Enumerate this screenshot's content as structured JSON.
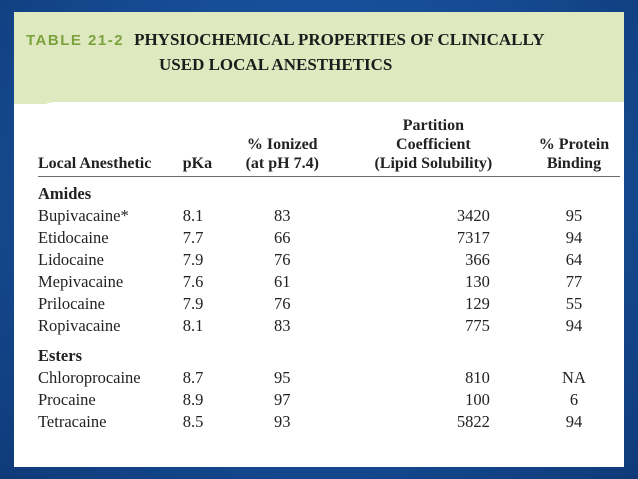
{
  "caption": {
    "table_label": "TABLE 21-2",
    "title_line1": "PHYSIOCHEMICAL PROPERTIES OF CLINICALLY",
    "title_line2": "USED LOCAL ANESTHETICS"
  },
  "columns": {
    "name": "Local Anesthetic",
    "pka": "pKa",
    "ionized_l1": "% Ionized",
    "ionized_l2": "(at pH 7.4)",
    "partition_l1": "Partition",
    "partition_l2": "Coefficient",
    "partition_l3": "(Lipid Solubility)",
    "protein_l1": "% Protein",
    "protein_l2": "Binding"
  },
  "groups": [
    {
      "label": "Amides",
      "rows": [
        {
          "name": "Bupivacaine*",
          "pka": "8.1",
          "ionized": "83",
          "partition": "3420",
          "protein": "95"
        },
        {
          "name": "Etidocaine",
          "pka": "7.7",
          "ionized": "66",
          "partition": "7317",
          "protein": "94"
        },
        {
          "name": "Lidocaine",
          "pka": "7.9",
          "ionized": "76",
          "partition": "366",
          "protein": "64"
        },
        {
          "name": "Mepivacaine",
          "pka": "7.6",
          "ionized": "61",
          "partition": "130",
          "protein": "77"
        },
        {
          "name": "Prilocaine",
          "pka": "7.9",
          "ionized": "76",
          "partition": "129",
          "protein": "55"
        },
        {
          "name": "Ropivacaine",
          "pka": "8.1",
          "ionized": "83",
          "partition": "775",
          "protein": "94"
        }
      ]
    },
    {
      "label": "Esters",
      "rows": [
        {
          "name": "Chloroprocaine",
          "pka": "8.7",
          "ionized": "95",
          "partition": "810",
          "protein": "NA"
        },
        {
          "name": "Procaine",
          "pka": "8.9",
          "ionized": "97",
          "partition": "100",
          "protein": "6"
        },
        {
          "name": "Tetracaine",
          "pka": "8.5",
          "ionized": "93",
          "partition": "5822",
          "protein": "94"
        }
      ]
    }
  ]
}
